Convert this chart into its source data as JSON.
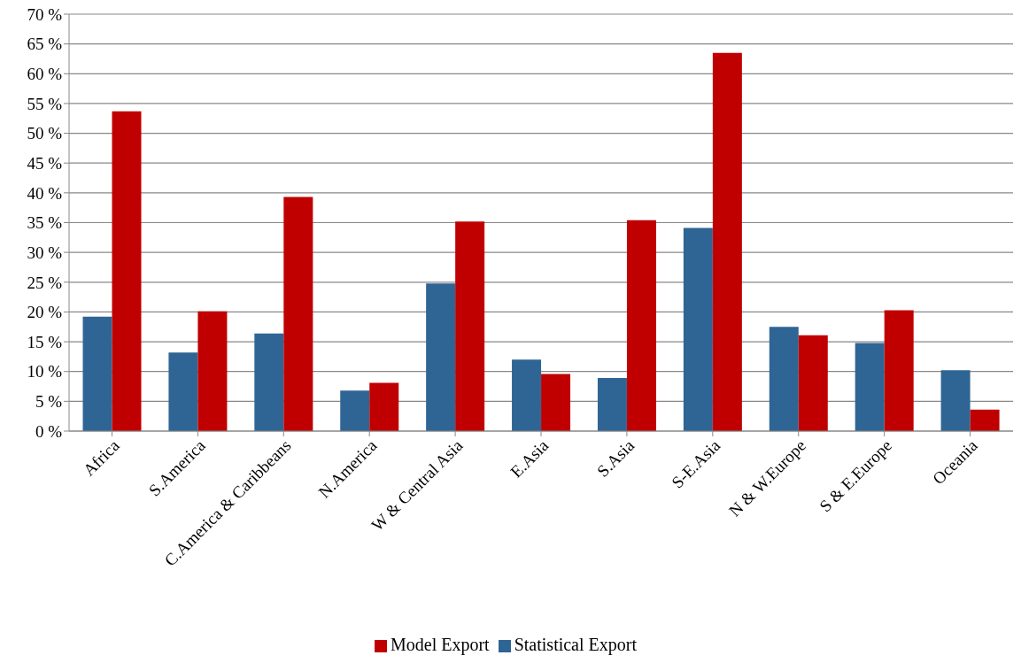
{
  "chart_data": {
    "type": "bar",
    "categories": [
      "Africa",
      "S.America",
      "C.America & Caribbeans",
      "N.America",
      "W & Central Asia",
      "E.Asia",
      "S.Asia",
      "S-E.Asia",
      "N & W.Europe",
      "S & E.Europe",
      "Oceania"
    ],
    "series": [
      {
        "name": "Statistical Export",
        "color": "#2e6594",
        "values": [
          19.2,
          13.2,
          16.4,
          6.8,
          24.8,
          12.0,
          8.9,
          34.1,
          17.5,
          14.8,
          10.2
        ]
      },
      {
        "name": "Model Export",
        "color": "#c00000",
        "values": [
          53.7,
          20.1,
          39.3,
          8.1,
          35.2,
          9.6,
          35.4,
          63.5,
          16.1,
          20.3,
          3.6
        ]
      }
    ],
    "ylim": [
      0,
      70
    ],
    "yticks": [
      {
        "value": 0,
        "label": "0 %"
      },
      {
        "value": 5,
        "label": "5 %"
      },
      {
        "value": 10,
        "label": "10 %"
      },
      {
        "value": 15,
        "label": "15 %"
      },
      {
        "value": 20,
        "label": "20 %"
      },
      {
        "value": 25,
        "label": "25 %"
      },
      {
        "value": 30,
        "label": "30 %"
      },
      {
        "value": 35,
        "label": "35 %"
      },
      {
        "value": 40,
        "label": "40 %"
      },
      {
        "value": 45,
        "label": "45 %"
      },
      {
        "value": 50,
        "label": "50 %"
      },
      {
        "value": 55,
        "label": "55 %"
      },
      {
        "value": 60,
        "label": "60 %"
      },
      {
        "value": 65,
        "label": "65 %"
      },
      {
        "value": 70,
        "label": "70 %"
      }
    ],
    "grid": "y",
    "legend": "bottom"
  }
}
